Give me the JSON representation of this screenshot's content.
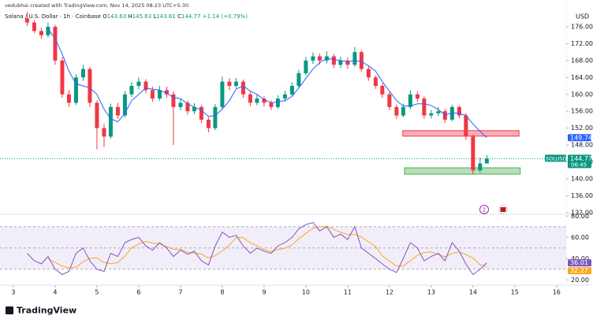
{
  "chart_data": {
    "type": "candlestick",
    "attribution": "vedubhai created with TradingView.com, Nov 14, 2025 08:23 UTC+5:30",
    "title": "Solana / U.S. Dollar · 1h · Coinbase",
    "ohlc_labels": [
      "O",
      "H",
      "L",
      "C"
    ],
    "change": "+1.14 (+0.79%)",
    "currency": "USD",
    "symbol": "SOLUSD",
    "countdown": "06:45",
    "brand": "TradingView",
    "event_badge": "2",
    "up_color": "#089981",
    "down_color": "#f23645",
    "x": [
      3.33,
      3.5,
      3.67,
      3.83,
      4,
      4.17,
      4.33,
      4.5,
      4.67,
      4.83,
      5,
      5.17,
      5.33,
      5.5,
      5.67,
      5.83,
      6,
      6.17,
      6.33,
      6.5,
      6.67,
      6.83,
      7,
      7.17,
      7.33,
      7.5,
      7.67,
      7.83,
      8,
      8.17,
      8.33,
      8.5,
      8.67,
      8.83,
      9,
      9.17,
      9.33,
      9.5,
      9.67,
      9.83,
      10,
      10.17,
      10.33,
      10.5,
      10.67,
      10.83,
      11,
      11.17,
      11.33,
      11.5,
      11.67,
      11.83,
      12,
      12.17,
      12.33,
      12.5,
      12.67,
      12.83,
      13,
      13.17,
      13.33,
      13.5,
      13.67,
      13.83,
      14,
      14.17,
      14.33
    ],
    "open": [
      178,
      177,
      175,
      174,
      176,
      168,
      160,
      158,
      164,
      166,
      158,
      152,
      150,
      157,
      155,
      160,
      162,
      163,
      161,
      159,
      161,
      160,
      157,
      158,
      156,
      157,
      154,
      152,
      157,
      163,
      162,
      163,
      160,
      158,
      159,
      158,
      157,
      159,
      160,
      162,
      165,
      168,
      169,
      168,
      169,
      167,
      168,
      167,
      170,
      166,
      164,
      162,
      160,
      157,
      155,
      157,
      160,
      159,
      155,
      155.5,
      156,
      154,
      157,
      155,
      150,
      142,
      143.63
    ],
    "high": [
      179.5,
      177.6,
      175.8,
      177,
      176.5,
      168.8,
      161,
      164.8,
      167,
      166.5,
      158.6,
      153,
      157.8,
      158,
      160.8,
      162.9,
      164,
      163.6,
      161.8,
      162,
      161.8,
      160.7,
      159,
      158.6,
      157.9,
      157.5,
      154.6,
      157.7,
      164.2,
      163.8,
      163.9,
      163.5,
      160.6,
      159.9,
      159.6,
      158.6,
      159.8,
      160.9,
      162.8,
      165.8,
      168.9,
      169.9,
      169.7,
      170.2,
      169.6,
      168.9,
      168.7,
      171.2,
      170.5,
      166.6,
      164.5,
      162.6,
      160.5,
      157.6,
      157.8,
      161,
      160.7,
      159.5,
      156.3,
      157,
      156.6,
      157.5,
      157.4,
      155.6,
      150.5,
      145,
      145.63
    ],
    "low": [
      176.2,
      174.5,
      173.2,
      173.5,
      167,
      159.2,
      157,
      157.5,
      163.2,
      157,
      147,
      147.5,
      149.5,
      154.2,
      154.5,
      159.3,
      161.2,
      160.2,
      158.2,
      158.5,
      159.2,
      148,
      156.2,
      155.2,
      155.3,
      153.2,
      151,
      151.5,
      156.5,
      161,
      161.4,
      159.2,
      157.2,
      157.4,
      157.1,
      156.3,
      156.5,
      158.3,
      159.5,
      161.5,
      164.5,
      167.2,
      167,
      167.3,
      166.2,
      166.3,
      166.1,
      166.5,
      165.3,
      163.2,
      161.3,
      159.2,
      156.2,
      154.2,
      154.6,
      156.5,
      158.2,
      154.2,
      154.3,
      154.8,
      153.2,
      153.6,
      154.3,
      149.2,
      141,
      141.5,
      143.61
    ],
    "close": [
      177,
      175,
      174,
      176,
      168,
      160,
      158,
      164,
      166,
      158,
      152,
      150,
      157,
      155,
      160,
      162,
      163,
      161,
      159,
      161,
      160,
      157,
      158,
      156,
      157,
      154,
      152,
      157,
      163,
      162,
      163,
      160,
      158,
      159,
      158,
      157,
      159,
      160,
      162,
      165,
      168,
      169,
      168,
      169,
      167,
      168,
      167,
      170,
      166,
      164,
      162,
      160,
      157,
      155,
      157,
      160,
      159,
      155,
      155.5,
      156,
      154,
      157,
      155,
      150,
      142,
      143.63,
      144.77
    ],
    "sma": {
      "color": "#2962ff",
      "values": [
        null,
        null,
        null,
        175.5,
        173.25,
        169.5,
        165.5,
        162.5,
        162,
        161.5,
        160,
        156.5,
        154.25,
        153.5,
        155.5,
        158.5,
        160,
        161.5,
        161.25,
        161,
        160.25,
        159.25,
        159,
        157.75,
        157,
        156.25,
        154.75,
        155,
        156.5,
        158.5,
        161.25,
        162,
        160.75,
        160,
        158.75,
        158,
        158.25,
        158.5,
        159.5,
        161.5,
        163.75,
        166,
        167.5,
        168.5,
        168.25,
        168,
        167.75,
        168,
        167.75,
        166.75,
        165.5,
        163,
        160.75,
        158.5,
        157.25,
        157.25,
        157.75,
        157.75,
        157.38,
        156.38,
        155.13,
        155.63,
        155.5,
        155,
        153,
        151.2,
        149.74
      ]
    },
    "xlim": [
      2.68,
      16.23
    ],
    "xticks": [
      3,
      4,
      5,
      6,
      7,
      8,
      9,
      10,
      11,
      12,
      13,
      14,
      15,
      16
    ],
    "ylim": [
      131.6,
      180.1
    ],
    "yticks": [
      {
        "value": 176,
        "label": "176.00"
      },
      {
        "value": 172,
        "label": "172.00"
      },
      {
        "value": 168,
        "label": "168.00"
      },
      {
        "value": 164,
        "label": "164.00"
      },
      {
        "value": 160,
        "label": "160.00"
      },
      {
        "value": 156,
        "label": "156.00"
      },
      {
        "value": 152,
        "label": "152.00"
      },
      {
        "value": 148,
        "label": "148.00"
      },
      {
        "value": 144,
        "label": "144.00"
      },
      {
        "value": 140,
        "label": "140.00"
      },
      {
        "value": 136,
        "label": "136.00"
      },
      {
        "value": 132,
        "label": "132.00"
      }
    ],
    "zones": [
      {
        "top": 151.4,
        "bottom": 150.1,
        "start": 12.32,
        "end": 15.1,
        "color": "#f23645"
      },
      {
        "top": 142.6,
        "bottom": 141.1,
        "start": 12.36,
        "end": 15.13,
        "color": "#4caf50"
      }
    ],
    "rsi": {
      "color": "#7e57c2",
      "ma_color": "#f9a825",
      "values": [
        45,
        38,
        35,
        42,
        30,
        25,
        28,
        45,
        50,
        38,
        30,
        28,
        45,
        42,
        55,
        58,
        60,
        52,
        48,
        55,
        50,
        42,
        48,
        44,
        47,
        38,
        34,
        52,
        65,
        60,
        62,
        52,
        45,
        50,
        47,
        45,
        52,
        55,
        60,
        68,
        72,
        74,
        66,
        70,
        60,
        63,
        58,
        70,
        50,
        45,
        40,
        35,
        30,
        27,
        40,
        55,
        50,
        38,
        42,
        45,
        38,
        55,
        47,
        35,
        25,
        30,
        36.01
      ],
      "ma_values": [
        null,
        null,
        null,
        40,
        36.25,
        33,
        31.25,
        32,
        37,
        40.25,
        40.75,
        36.5,
        35.25,
        36.25,
        42.5,
        50,
        53.75,
        56.25,
        54.5,
        53.75,
        51.25,
        48.75,
        48.75,
        46,
        45.25,
        44.25,
        40.75,
        42.75,
        47.25,
        52.75,
        59.75,
        59.75,
        54.75,
        52.25,
        48.5,
        46.75,
        48.5,
        49.75,
        53,
        58.75,
        63.75,
        68.5,
        70,
        70.5,
        67.5,
        64.75,
        62.75,
        62.75,
        60.25,
        55.75,
        51.25,
        42.5,
        37.5,
        33,
        33,
        38,
        43,
        45.75,
        46.25,
        43.75,
        41.75,
        45,
        46.25,
        43.75,
        40.5,
        34.25,
        32.27
      ],
      "bands": [
        70,
        50,
        30
      ],
      "ylim": [
        15,
        80.2
      ],
      "yticks": [
        {
          "value": 80,
          "label": "80.00"
        },
        {
          "value": 60,
          "label": "60.00"
        },
        {
          "value": 40,
          "label": "40.00"
        },
        {
          "value": 20,
          "label": "20.00"
        }
      ]
    }
  }
}
